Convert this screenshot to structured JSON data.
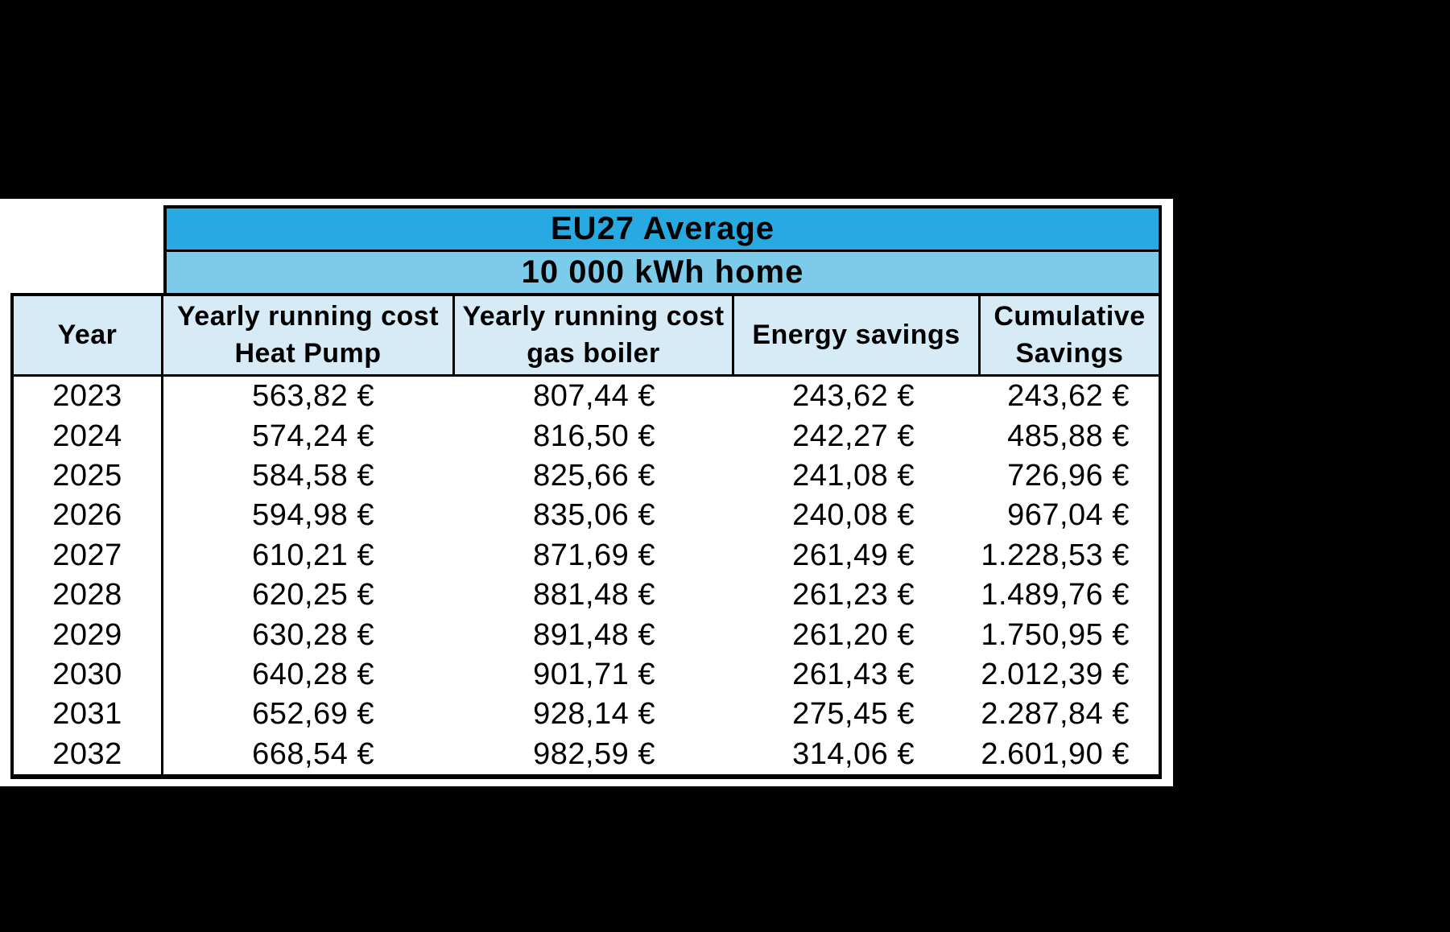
{
  "colors": {
    "background": "#000000",
    "content_background": "#ffffff",
    "band_primary_fill": "#27AAE1",
    "band_secondary_fill": "#7DCBEA",
    "header_fill": "#D6EBF5",
    "border": "#000000",
    "text": "#000000"
  },
  "table": {
    "title": "EU27 Average",
    "subtitle": "10 000 kWh home",
    "columns": [
      "Year",
      "Yearly running cost\nHeat Pump",
      "Yearly running cost\ngas boiler",
      "Energy savings",
      "Cumulative\nSavings"
    ],
    "column_slugs": [
      "year",
      "heat-pump-cost",
      "gas-boiler-cost",
      "energy-savings",
      "cumulative-savings"
    ],
    "rows": [
      [
        "2023",
        "563,82 €",
        "807,44 €",
        "243,62 €",
        "243,62 €"
      ],
      [
        "2024",
        "574,24 €",
        "816,50 €",
        "242,27 €",
        "485,88 €"
      ],
      [
        "2025",
        "584,58 €",
        "825,66 €",
        "241,08 €",
        "726,96 €"
      ],
      [
        "2026",
        "594,98 €",
        "835,06 €",
        "240,08 €",
        "967,04 €"
      ],
      [
        "2027",
        "610,21 €",
        "871,69 €",
        "261,49 €",
        "1.228,53 €"
      ],
      [
        "2028",
        "620,25 €",
        "881,48 €",
        "261,23 €",
        "1.489,76 €"
      ],
      [
        "2029",
        "630,28 €",
        "891,48 €",
        "261,20 €",
        "1.750,95 €"
      ],
      [
        "2030",
        "640,28 €",
        "901,71 €",
        "261,43 €",
        "2.012,39 €"
      ],
      [
        "2031",
        "652,69 €",
        "928,14 €",
        "275,45 €",
        "2.287,84 €"
      ],
      [
        "2032",
        "668,54 €",
        "982,59 €",
        "314,06 €",
        "2.601,90 €"
      ]
    ]
  },
  "chart_data": {
    "type": "table",
    "title": "EU27 Average",
    "subtitle": "10 000 kWh home",
    "categories": [
      2023,
      2024,
      2025,
      2026,
      2027,
      2028,
      2029,
      2030,
      2031,
      2032
    ],
    "series": [
      {
        "name": "Yearly running cost Heat Pump",
        "values": [
          563.82,
          574.24,
          584.58,
          594.98,
          610.21,
          620.25,
          630.28,
          640.28,
          652.69,
          668.54
        ]
      },
      {
        "name": "Yearly running cost gas boiler",
        "values": [
          807.44,
          816.5,
          825.66,
          835.06,
          871.69,
          881.48,
          891.48,
          901.71,
          928.14,
          982.59
        ]
      },
      {
        "name": "Energy savings",
        "values": [
          243.62,
          242.27,
          241.08,
          240.08,
          261.49,
          261.23,
          261.2,
          261.43,
          275.45,
          314.06
        ]
      },
      {
        "name": "Cumulative Savings",
        "values": [
          243.62,
          485.88,
          726.96,
          967.04,
          1228.53,
          1489.76,
          1750.95,
          2012.39,
          2287.84,
          2601.9
        ]
      }
    ],
    "units": "EUR",
    "number_format": "european (comma decimal, dot thousands, trailing € sign)"
  }
}
